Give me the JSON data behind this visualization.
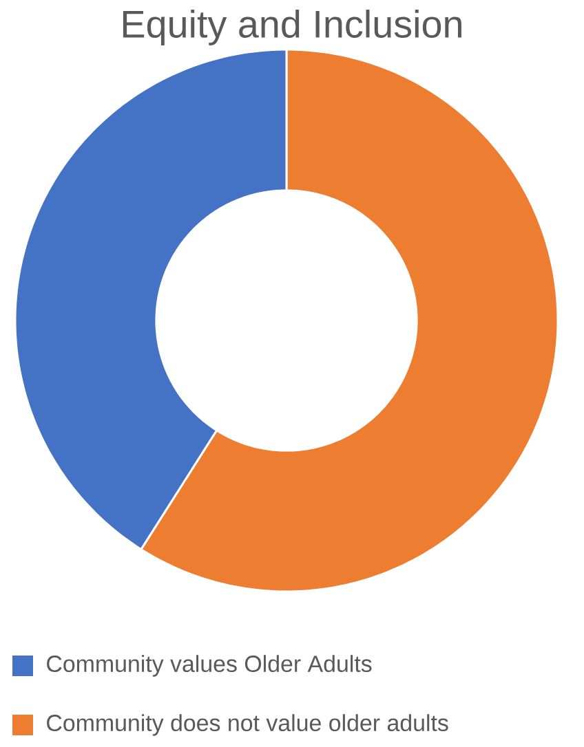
{
  "chart_data": {
    "type": "donut",
    "title": "Equity and Inclusion",
    "categories": [
      "Community values Older Adults",
      "Community does not value older adults"
    ],
    "values": [
      41,
      59
    ],
    "colors": [
      "#4472c4",
      "#ed7d31"
    ],
    "legend": "bottom"
  }
}
